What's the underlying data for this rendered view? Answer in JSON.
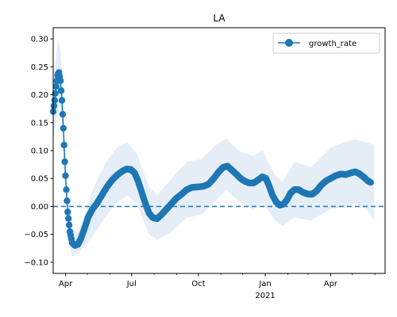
{
  "chart_data": {
    "type": "line",
    "title": "LA",
    "xlabel": "",
    "ylabel": "",
    "x_range": [
      "2020-03-15",
      "2021-06-15"
    ],
    "ylim": [
      -0.12,
      0.32
    ],
    "yticks": [
      -0.1,
      -0.05,
      0.0,
      0.05,
      0.1,
      0.15,
      0.2,
      0.25,
      0.3
    ],
    "ytick_labels": [
      "−0.10",
      "−0.05",
      "0.00",
      "0.05",
      "0.10",
      "0.15",
      "0.20",
      "0.25",
      "0.30"
    ],
    "xticks_major": [
      {
        "date": "2020-04-01",
        "label": "Apr",
        "sublabel": ""
      },
      {
        "date": "2020-07-01",
        "label": "Jul",
        "sublabel": ""
      },
      {
        "date": "2020-10-01",
        "label": "Oct",
        "sublabel": ""
      },
      {
        "date": "2021-01-01",
        "label": "Jan",
        "sublabel": "2021"
      },
      {
        "date": "2021-04-01",
        "label": "Apr",
        "sublabel": ""
      }
    ],
    "xticks_minor": [
      "2020-05-01",
      "2020-06-01",
      "2020-08-01",
      "2020-09-01",
      "2020-11-01",
      "2020-12-01",
      "2021-02-01",
      "2021-03-01",
      "2021-05-01",
      "2021-06-01"
    ],
    "reference_line": {
      "y": 0,
      "style": "dashed",
      "color": "#1f77b4"
    },
    "legend": {
      "position": "upper-right",
      "label": "growth_rate"
    },
    "series": [
      {
        "name": "growth_rate",
        "color": "#1f77b4",
        "band_color": "#dce8f4",
        "key_points": [
          [
            "2020-03-15",
            0.17
          ],
          [
            "2020-03-17",
            0.19
          ],
          [
            "2020-03-19",
            0.215
          ],
          [
            "2020-03-21",
            0.235
          ],
          [
            "2020-03-23",
            0.24
          ],
          [
            "2020-03-25",
            0.225
          ],
          [
            "2020-03-27",
            0.19
          ],
          [
            "2020-03-29",
            0.14
          ],
          [
            "2020-03-31",
            0.08
          ],
          [
            "2020-04-02",
            0.03
          ],
          [
            "2020-04-04",
            -0.01
          ],
          [
            "2020-04-07",
            -0.045
          ],
          [
            "2020-04-10",
            -0.065
          ],
          [
            "2020-04-14",
            -0.07
          ],
          [
            "2020-04-18",
            -0.068
          ],
          [
            "2020-04-22",
            -0.058
          ],
          [
            "2020-04-27",
            -0.04
          ],
          [
            "2020-05-02",
            -0.02
          ],
          [
            "2020-05-08",
            -0.005
          ],
          [
            "2020-05-14",
            0.005
          ],
          [
            "2020-05-21",
            0.02
          ],
          [
            "2020-05-28",
            0.035
          ],
          [
            "2020-06-04",
            0.047
          ],
          [
            "2020-06-11",
            0.056
          ],
          [
            "2020-06-18",
            0.063
          ],
          [
            "2020-06-24",
            0.067
          ],
          [
            "2020-06-30",
            0.066
          ],
          [
            "2020-07-05",
            0.06
          ],
          [
            "2020-07-10",
            0.045
          ],
          [
            "2020-07-15",
            0.025
          ],
          [
            "2020-07-20",
            0.005
          ],
          [
            "2020-07-25",
            -0.012
          ],
          [
            "2020-07-30",
            -0.02
          ],
          [
            "2020-08-05",
            -0.022
          ],
          [
            "2020-08-11",
            -0.015
          ],
          [
            "2020-08-18",
            -0.005
          ],
          [
            "2020-08-25",
            0.005
          ],
          [
            "2020-09-01",
            0.015
          ],
          [
            "2020-09-08",
            0.022
          ],
          [
            "2020-09-15",
            0.03
          ],
          [
            "2020-09-22",
            0.034
          ],
          [
            "2020-10-01",
            0.035
          ],
          [
            "2020-10-08",
            0.036
          ],
          [
            "2020-10-15",
            0.04
          ],
          [
            "2020-10-22",
            0.05
          ],
          [
            "2020-10-29",
            0.062
          ],
          [
            "2020-11-04",
            0.07
          ],
          [
            "2020-11-10",
            0.072
          ],
          [
            "2020-11-16",
            0.065
          ],
          [
            "2020-11-22",
            0.058
          ],
          [
            "2020-11-28",
            0.05
          ],
          [
            "2020-12-04",
            0.045
          ],
          [
            "2020-12-10",
            0.042
          ],
          [
            "2020-12-16",
            0.042
          ],
          [
            "2020-12-22",
            0.047
          ],
          [
            "2020-12-28",
            0.053
          ],
          [
            "2021-01-02",
            0.05
          ],
          [
            "2021-01-06",
            0.038
          ],
          [
            "2021-01-11",
            0.02
          ],
          [
            "2021-01-16",
            0.008
          ],
          [
            "2021-01-21",
            0.002
          ],
          [
            "2021-01-26",
            0.004
          ],
          [
            "2021-01-31",
            0.012
          ],
          [
            "2021-02-05",
            0.024
          ],
          [
            "2021-02-10",
            0.03
          ],
          [
            "2021-02-16",
            0.03
          ],
          [
            "2021-02-22",
            0.025
          ],
          [
            "2021-03-01",
            0.022
          ],
          [
            "2021-03-07",
            0.022
          ],
          [
            "2021-03-13",
            0.028
          ],
          [
            "2021-03-19",
            0.038
          ],
          [
            "2021-03-25",
            0.045
          ],
          [
            "2021-04-01",
            0.05
          ],
          [
            "2021-04-08",
            0.055
          ],
          [
            "2021-04-15",
            0.058
          ],
          [
            "2021-04-22",
            0.057
          ],
          [
            "2021-04-29",
            0.06
          ],
          [
            "2021-05-05",
            0.062
          ],
          [
            "2021-05-11",
            0.058
          ],
          [
            "2021-05-17",
            0.052
          ],
          [
            "2021-05-23",
            0.045
          ],
          [
            "2021-05-26",
            0.043
          ]
        ],
        "band_key_points": [
          [
            "2020-03-15",
            0.12,
            0.22
          ],
          [
            "2020-03-20",
            0.16,
            0.28
          ],
          [
            "2020-03-22",
            0.17,
            0.3
          ],
          [
            "2020-03-25",
            0.18,
            0.28
          ],
          [
            "2020-03-28",
            0.13,
            0.23
          ],
          [
            "2020-03-31",
            0.04,
            0.13
          ],
          [
            "2020-04-04",
            -0.05,
            0.03
          ],
          [
            "2020-04-10",
            -0.09,
            -0.04
          ],
          [
            "2020-04-18",
            -0.085,
            -0.048
          ],
          [
            "2020-04-28",
            -0.07,
            -0.01
          ],
          [
            "2020-05-10",
            -0.05,
            0.035
          ],
          [
            "2020-05-25",
            -0.02,
            0.075
          ],
          [
            "2020-06-10",
            0.005,
            0.105
          ],
          [
            "2020-06-25",
            0.02,
            0.115
          ],
          [
            "2020-07-08",
            0.005,
            0.095
          ],
          [
            "2020-07-25",
            -0.05,
            0.035
          ],
          [
            "2020-08-05",
            -0.06,
            0.02
          ],
          [
            "2020-08-25",
            -0.045,
            0.05
          ],
          [
            "2020-09-15",
            -0.02,
            0.08
          ],
          [
            "2020-10-05",
            -0.015,
            0.085
          ],
          [
            "2020-10-25",
            0.01,
            0.11
          ],
          [
            "2020-11-08",
            0.03,
            0.122
          ],
          [
            "2020-11-25",
            0.01,
            0.1
          ],
          [
            "2020-12-15",
            -0.005,
            0.09
          ],
          [
            "2020-12-28",
            0.005,
            0.1
          ],
          [
            "2021-01-15",
            -0.025,
            0.055
          ],
          [
            "2021-01-25",
            -0.035,
            0.045
          ],
          [
            "2021-02-10",
            -0.02,
            0.08
          ],
          [
            "2021-03-05",
            -0.025,
            0.07
          ],
          [
            "2021-04-01",
            -0.005,
            0.105
          ],
          [
            "2021-04-20",
            0.0,
            0.115
          ],
          [
            "2021-05-05",
            0.005,
            0.12
          ],
          [
            "2021-05-20",
            -0.005,
            0.115
          ],
          [
            "2021-05-31",
            -0.025,
            0.11
          ]
        ]
      }
    ]
  }
}
